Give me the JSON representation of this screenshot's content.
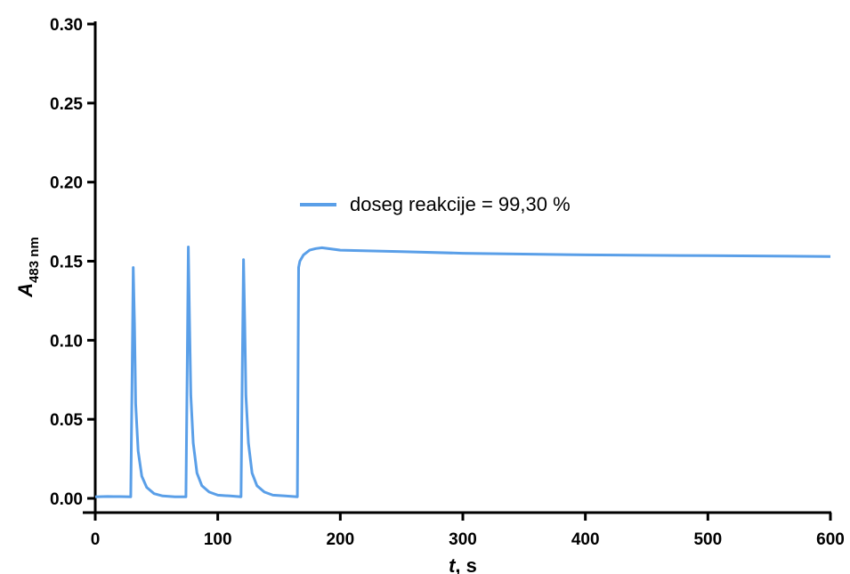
{
  "chart_data": {
    "type": "line",
    "title": "",
    "xlabel": {
      "symbol": "t",
      "unit": ", s"
    },
    "ylabel": {
      "symbol": "A",
      "subscript": "483 nm"
    },
    "xlim": [
      0,
      600
    ],
    "ylim": [
      0,
      0.3
    ],
    "x_ticks": [
      "0",
      "100",
      "200",
      "300",
      "400",
      "500",
      "600"
    ],
    "x_tick_values": [
      0,
      100,
      200,
      300,
      400,
      500,
      600
    ],
    "y_ticks": [
      "0.00",
      "0.05",
      "0.10",
      "0.15",
      "0.20",
      "0.25",
      "0.30"
    ],
    "y_tick_values": [
      0,
      0.05,
      0.1,
      0.15,
      0.2,
      0.25,
      0.3
    ],
    "grid": false,
    "legend_position": "center",
    "series": [
      {
        "name": "doseg reakcije = 99,30 %",
        "color": "#5a9fe8",
        "x": [
          0,
          10,
          20,
          29,
          30,
          31,
          32,
          33,
          35,
          38,
          42,
          48,
          55,
          65,
          74,
          75,
          76,
          77,
          78,
          80,
          83,
          87,
          93,
          100,
          110,
          119,
          120,
          121,
          122,
          123,
          125,
          128,
          132,
          138,
          145,
          155,
          165,
          166,
          167,
          170,
          175,
          180,
          185,
          200,
          250,
          300,
          400,
          500,
          600
        ],
        "y": [
          0.001,
          0.0012,
          0.0011,
          0.001,
          0.07,
          0.146,
          0.11,
          0.06,
          0.03,
          0.014,
          0.007,
          0.003,
          0.0015,
          0.001,
          0.001,
          0.08,
          0.159,
          0.11,
          0.065,
          0.035,
          0.016,
          0.008,
          0.004,
          0.002,
          0.0015,
          0.001,
          0.08,
          0.151,
          0.11,
          0.065,
          0.035,
          0.016,
          0.008,
          0.004,
          0.002,
          0.0015,
          0.001,
          0.146,
          0.15,
          0.154,
          0.157,
          0.158,
          0.1585,
          0.157,
          0.156,
          0.155,
          0.154,
          0.1535,
          0.153
        ]
      }
    ]
  }
}
